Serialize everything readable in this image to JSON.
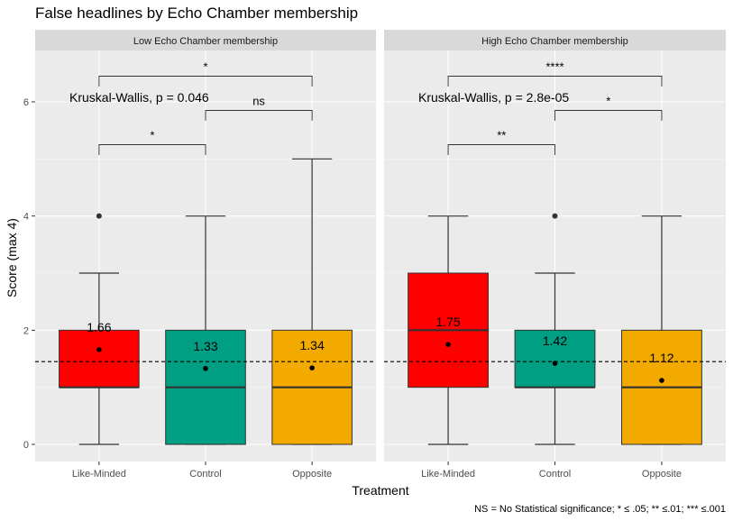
{
  "chart_data": {
    "type": "box",
    "title": "False headlines by Echo Chamber membership",
    "xlabel": "Treatment",
    "ylabel": "Score (max 4)",
    "caption": "NS = No Statistical significance; * ≤ .05; ** ≤.01; *** ≤.001",
    "ylim": [
      -0.3,
      6.9
    ],
    "yticks": [
      0,
      2,
      4,
      6
    ],
    "reference_line": 1.45,
    "categories": [
      "Like-Minded",
      "Control",
      "Opposite"
    ],
    "colors": {
      "Like-Minded": "#ff0000",
      "Control": "#009e83",
      "Opposite": "#f2a900"
    },
    "panels": [
      {
        "strip": "Low Echo Chamber membership",
        "test_label": "Kruskal-Wallis, p = 0.046",
        "boxes": [
          {
            "category": "Like-Minded",
            "min": 0,
            "q1": 1,
            "median": 1,
            "q3": 2,
            "max": 3,
            "mean": 1.66,
            "mean_label": "1.66",
            "outliers": [
              4
            ]
          },
          {
            "category": "Control",
            "min": 0,
            "q1": 0,
            "median": 1,
            "q3": 2,
            "max": 4,
            "mean": 1.33,
            "mean_label": "1.33",
            "outliers": []
          },
          {
            "category": "Opposite",
            "min": 0,
            "q1": 0,
            "median": 1,
            "q3": 2,
            "max": 5,
            "mean": 1.34,
            "mean_label": "1.34",
            "outliers": []
          }
        ],
        "brackets": [
          {
            "from": 0,
            "to": 1,
            "y": 5.25,
            "label": "*"
          },
          {
            "from": 1,
            "to": 2,
            "y": 5.85,
            "label": "ns"
          },
          {
            "from": 0,
            "to": 2,
            "y": 6.45,
            "label": "*"
          }
        ]
      },
      {
        "strip": "High Echo Chamber membership",
        "test_label": "Kruskal-Wallis, p = 2.8e-05",
        "boxes": [
          {
            "category": "Like-Minded",
            "min": 0,
            "q1": 1,
            "median": 2,
            "q3": 3,
            "max": 4,
            "mean": 1.75,
            "mean_label": "1.75",
            "outliers": []
          },
          {
            "category": "Control",
            "min": 0,
            "q1": 1,
            "median": 1,
            "q3": 2,
            "max": 3,
            "mean": 1.42,
            "mean_label": "1.42",
            "outliers": [
              4
            ]
          },
          {
            "category": "Opposite",
            "min": 0,
            "q1": 0,
            "median": 1,
            "q3": 2,
            "max": 4,
            "mean": 1.12,
            "mean_label": "1.12",
            "outliers": []
          }
        ],
        "brackets": [
          {
            "from": 0,
            "to": 1,
            "y": 5.25,
            "label": "**"
          },
          {
            "from": 1,
            "to": 2,
            "y": 5.85,
            "label": "*"
          },
          {
            "from": 0,
            "to": 2,
            "y": 6.45,
            "label": "****"
          }
        ]
      }
    ]
  }
}
